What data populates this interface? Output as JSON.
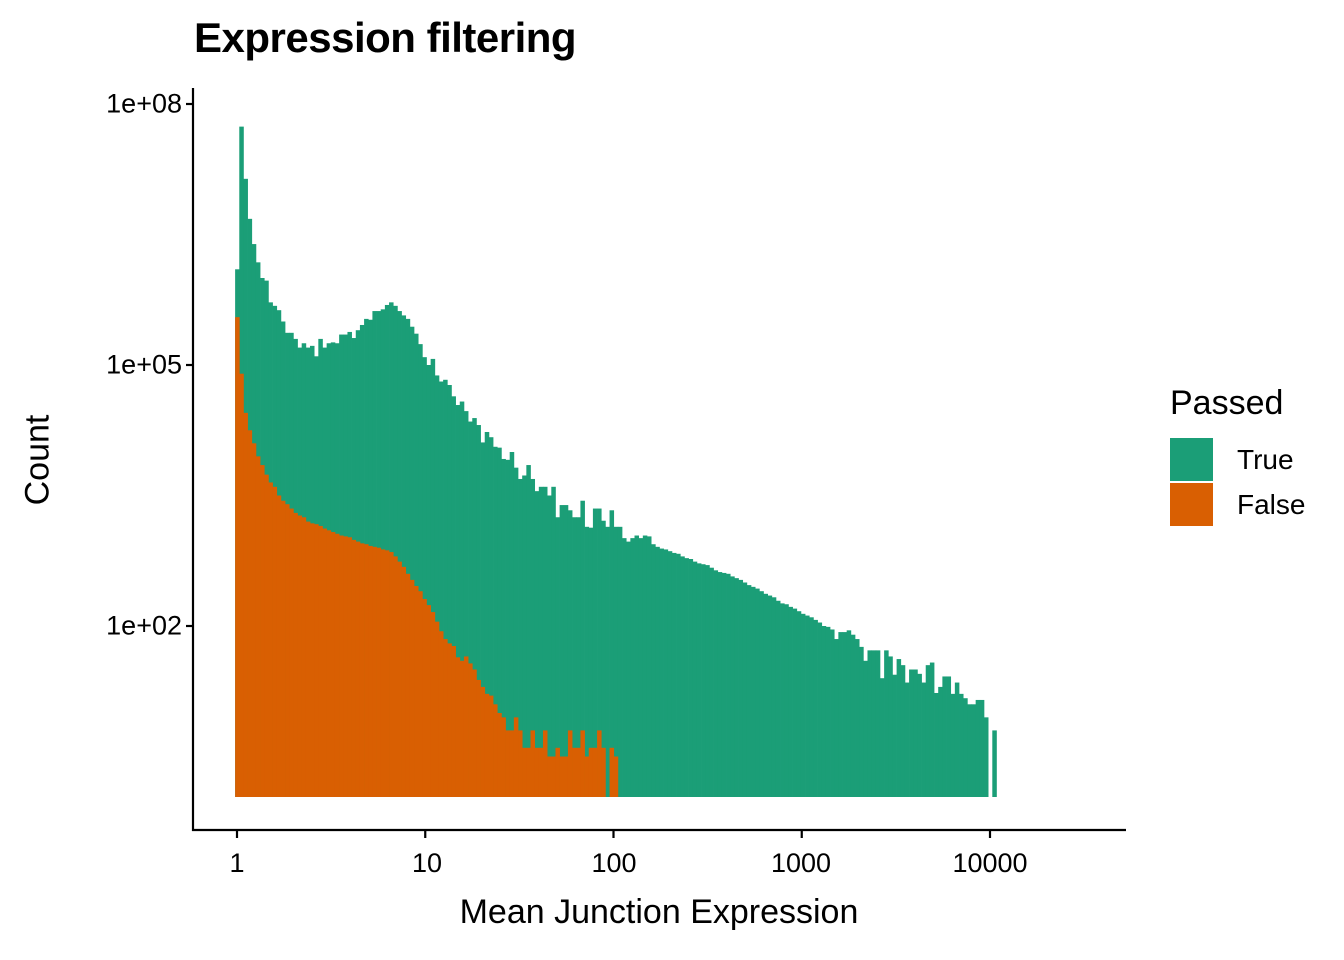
{
  "title": "Expression filtering",
  "axes": {
    "xlabel": "Mean Junction Expression",
    "ylabel": "Count",
    "xticks": [
      {
        "label": "1",
        "value": 1
      },
      {
        "label": "10",
        "value": 10
      },
      {
        "label": "100",
        "value": 100
      },
      {
        "label": "1000",
        "value": 1000
      },
      {
        "label": "10000",
        "value": 10000
      }
    ],
    "yticks": [
      {
        "label": "1e+08",
        "value": 100000000
      },
      {
        "label": "1e+05",
        "value": 100000
      },
      {
        "label": "1e+02",
        "value": 100
      }
    ]
  },
  "legend": {
    "title": "Passed",
    "items": [
      {
        "label": "True",
        "color": "#1B9E77"
      },
      {
        "label": "False",
        "color": "#D95F02"
      }
    ]
  },
  "chart_data": {
    "type": "bar",
    "subtype": "stacked histogram (log-log)",
    "title": "Expression filtering",
    "xlabel": "Mean Junction Expression",
    "ylabel": "Count",
    "x_scale": "log10",
    "y_scale": "log10",
    "xlim": [
      0.6,
      40000
    ],
    "ylim": [
      0.45,
      150000000
    ],
    "legend_title": "Passed",
    "legend_position": "right",
    "grid": false,
    "bin_log10_start": -0.01,
    "bin_log10_width": 0.0221,
    "series": [
      {
        "name": "True",
        "color": "#1B9E77",
        "note": "stacked total height, log10(count) per bin; null = empty bin",
        "log10_values": [
          6.1,
          7.74,
          7.14,
          6.68,
          6.39,
          6.18,
          6.0,
          5.97,
          5.72,
          5.68,
          5.63,
          5.5,
          5.37,
          5.37,
          5.3,
          5.2,
          5.25,
          5.2,
          5.22,
          5.1,
          5.3,
          5.2,
          5.25,
          5.26,
          5.25,
          5.35,
          5.35,
          5.38,
          5.31,
          5.4,
          5.46,
          5.53,
          5.52,
          5.62,
          5.62,
          5.64,
          5.69,
          5.72,
          5.68,
          5.62,
          5.57,
          5.53,
          5.44,
          5.36,
          5.24,
          5.09,
          5.0,
          5.07,
          4.88,
          4.81,
          4.83,
          4.77,
          4.64,
          4.54,
          4.58,
          4.47,
          4.35,
          4.39,
          4.31,
          4.11,
          4.23,
          4.17,
          4.06,
          4.05,
          3.92,
          3.91,
          4.0,
          3.82,
          3.69,
          3.73,
          3.85,
          3.69,
          3.55,
          3.6,
          3.6,
          3.5,
          3.6,
          3.25,
          3.39,
          3.39,
          3.33,
          3.25,
          3.25,
          3.44,
          3.14,
          3.13,
          3.35,
          3.35,
          3.21,
          3.14,
          3.33,
          3.14,
          3.14,
          3.01,
          2.97,
          3.01,
          3.04,
          3.01,
          3.04,
          3.03,
          2.94,
          2.91,
          2.89,
          2.88,
          2.86,
          2.84,
          2.83,
          2.8,
          2.78,
          2.77,
          2.74,
          2.72,
          2.71,
          2.7,
          2.67,
          2.64,
          2.62,
          2.61,
          2.6,
          2.57,
          2.55,
          2.53,
          2.5,
          2.47,
          2.45,
          2.43,
          2.4,
          2.37,
          2.35,
          2.33,
          2.29,
          2.26,
          2.25,
          2.22,
          2.2,
          2.17,
          2.14,
          2.12,
          2.1,
          2.07,
          2.04,
          2.0,
          1.99,
          1.96,
          1.85,
          1.93,
          1.93,
          1.95,
          1.9,
          1.85,
          1.76,
          1.6,
          1.72,
          1.72,
          1.72,
          1.4,
          1.72,
          1.65,
          1.44,
          1.62,
          1.55,
          1.35,
          1.5,
          1.5,
          1.45,
          1.35,
          1.55,
          1.58,
          1.23,
          1.3,
          1.42,
          1.42,
          1.22,
          1.35,
          1.22,
          1.17,
          1.1,
          1.1,
          1.15,
          1.15,
          0.95,
          null,
          0.8
        ]
      },
      {
        "name": "False",
        "color": "#D95F02",
        "note": "log10(count) per bin, drawn in front of True",
        "log10_values": [
          5.55,
          4.9,
          4.45,
          4.25,
          4.1,
          3.95,
          3.85,
          3.74,
          3.65,
          3.6,
          3.5,
          3.44,
          3.4,
          3.35,
          3.3,
          3.27,
          3.25,
          3.2,
          3.18,
          3.17,
          3.15,
          3.12,
          3.1,
          3.08,
          3.06,
          3.04,
          3.03,
          3.02,
          2.99,
          2.97,
          2.95,
          2.94,
          2.92,
          2.91,
          2.9,
          2.88,
          2.87,
          2.85,
          2.8,
          2.74,
          2.68,
          2.6,
          2.53,
          2.46,
          2.4,
          2.31,
          2.24,
          2.16,
          2.05,
          1.94,
          1.85,
          1.8,
          1.77,
          1.64,
          1.6,
          1.65,
          1.57,
          1.5,
          1.38,
          1.3,
          1.22,
          1.2,
          1.1,
          1.0,
          0.95,
          0.8,
          0.8,
          0.95,
          0.8,
          0.6,
          0.6,
          0.8,
          0.6,
          0.6,
          0.8,
          0.5,
          0.5,
          0.6,
          0.5,
          0.5,
          0.8,
          0.6,
          0.6,
          0.8,
          0.5,
          0.6,
          0.6,
          0.8,
          0.6,
          null,
          0.6,
          0.5
        ]
      }
    ]
  }
}
